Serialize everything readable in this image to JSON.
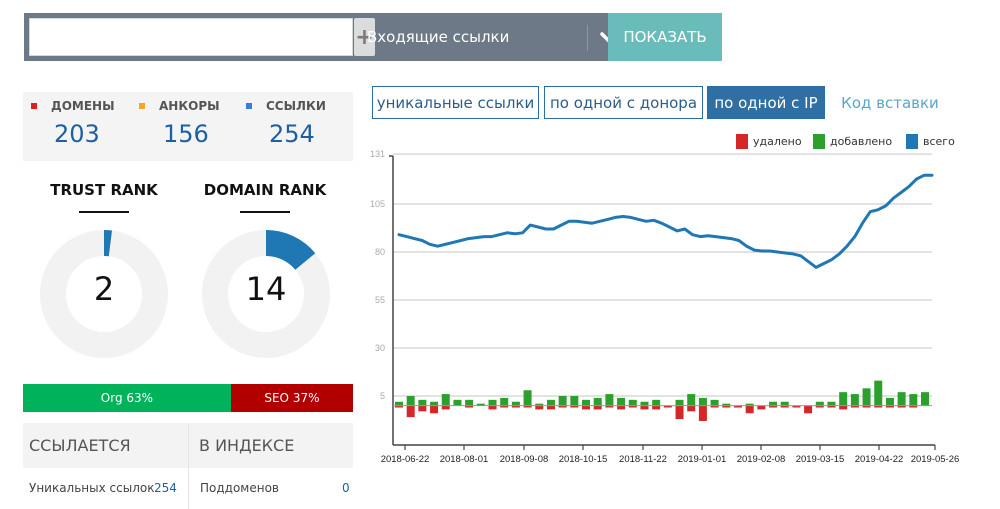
{
  "topbar": {
    "search_value": "",
    "search_placeholder": "",
    "add_icon": "plus-icon",
    "mode_label": "Входящие ссылки",
    "dropdown_icon": "chevron-down-icon",
    "show_button": "ПОКАЗАТЬ"
  },
  "stats": {
    "items": [
      {
        "label": "ДОМЕНЫ",
        "value": "203",
        "color": "#e02020"
      },
      {
        "label": "АНКОРЫ",
        "value": "156",
        "color": "#f5a623"
      },
      {
        "label": "ССЫЛКИ",
        "value": "254",
        "color": "#3a7de0"
      }
    ]
  },
  "ranks": {
    "trust": {
      "title": "TRUST RANK",
      "value": "2",
      "percent": 2
    },
    "domain": {
      "title": "DOMAIN RANK",
      "value": "14",
      "percent": 14
    },
    "accent": "#1f77b4",
    "track": "#f2f2f2"
  },
  "orgseo": {
    "org_label": "Org 63%",
    "org_percent": 63,
    "seo_label": "SEO 37%",
    "seo_percent": 37,
    "org_color": "#00b25a",
    "seo_color": "#b20000"
  },
  "bottom_table": {
    "left_header": "ССЫЛАЕТСЯ",
    "right_header": "В ИНДЕКСЕ",
    "left_row": {
      "label": "Уникальных ссылок",
      "value": "254"
    },
    "right_row": {
      "label": "Поддоменов",
      "value": "0"
    }
  },
  "tabs": [
    {
      "label": "уникальные ссылки",
      "active": false
    },
    {
      "label": "по одной с донора",
      "active": false
    },
    {
      "label": "по одной с IP",
      "active": true
    },
    {
      "label": "Код вставки",
      "link": true
    }
  ],
  "chart_data": {
    "type": "bar+line",
    "title": "",
    "legend": [
      {
        "name": "удалено",
        "color": "#d62728"
      },
      {
        "name": "добавлено",
        "color": "#2ca02c"
      },
      {
        "name": "всего",
        "color": "#1f77b4"
      }
    ],
    "y_ticks": [
      5,
      30,
      55,
      80,
      105,
      131
    ],
    "ylim": [
      -7,
      131
    ],
    "x_ticks": [
      "2018-06-22",
      "2018-08-01",
      "2018-09-08",
      "2018-10-15",
      "2018-11-22",
      "2019-01-01",
      "2019-02-08",
      "2019-03-15",
      "2019-04-22",
      "2019-05-26"
    ],
    "grid": true,
    "series": [
      {
        "name": "всего",
        "type": "line",
        "values": [
          89,
          88,
          87,
          86,
          84,
          83,
          84,
          85,
          86,
          87,
          87.5,
          88,
          88,
          89,
          90,
          89.5,
          90,
          94,
          93,
          92,
          92,
          94,
          96,
          96,
          95.5,
          95,
          96,
          97,
          98,
          98.5,
          98,
          97,
          96,
          96.5,
          95,
          93,
          91,
          92,
          89,
          88,
          88.5,
          88,
          87.5,
          87,
          86,
          83,
          81,
          80.5,
          80.5,
          80,
          79.5,
          79,
          78,
          75,
          72,
          74,
          76,
          79,
          83,
          88,
          95,
          101,
          102,
          104,
          108,
          111,
          114,
          118,
          120,
          120
        ]
      },
      {
        "name": "добавлено",
        "type": "bar",
        "values": [
          2,
          5,
          3,
          2,
          6,
          3,
          3,
          1,
          3,
          4,
          2,
          8,
          1,
          3,
          5,
          5,
          3,
          4,
          6,
          4,
          3,
          2,
          3,
          0,
          3,
          6,
          4,
          3,
          1,
          0,
          1,
          0,
          2,
          2,
          0,
          0,
          2,
          2,
          7,
          6,
          9,
          13,
          4,
          7,
          6,
          7
        ]
      },
      {
        "name": "удалено",
        "type": "bar",
        "values": [
          -1,
          -6,
          -3,
          -4,
          -2,
          0,
          -1,
          0,
          -2,
          -1,
          -1,
          -1,
          -2,
          -2,
          -1,
          -1,
          -2,
          -2,
          -1,
          -2,
          -1,
          -2,
          -2,
          -1,
          -7,
          -3,
          -8,
          -1,
          -1,
          -1,
          -4,
          -2,
          -1,
          -1,
          -1,
          -4,
          -1,
          -1,
          -2,
          -1,
          -1,
          -1,
          -1,
          -1,
          -1,
          0
        ]
      }
    ]
  }
}
